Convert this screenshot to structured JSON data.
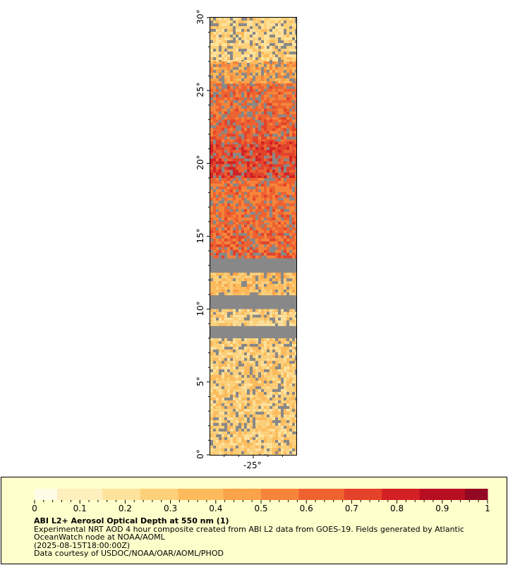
{
  "map": {
    "y_axis_labels": [
      "30°",
      "25°",
      "20°",
      "15°",
      "10°",
      "5°",
      "0°"
    ],
    "y_axis_values": [
      30,
      25,
      20,
      15,
      10,
      5,
      0
    ],
    "y_range": [
      0,
      30
    ],
    "x_axis_labels": [
      "-25°"
    ],
    "x_axis_values": [
      -25
    ],
    "x_range": [
      -28,
      -22
    ],
    "no_data_color": "#888888"
  },
  "legend": {
    "scale_labels": [
      "0",
      "0.1",
      "0.2",
      "0.3",
      "0.4",
      "0.5",
      "0.6",
      "0.7",
      "0.8",
      "0.9",
      "1"
    ],
    "scale_values": [
      0,
      0.1,
      0.2,
      0.3,
      0.4,
      0.5,
      0.6,
      0.7,
      0.8,
      0.9,
      1
    ],
    "title": "ABI L2+ Aerosol Optical Depth at 550 nm (1)",
    "description_line1": "Experimental NRT AOD 4 hour composite created from ABI L2 data from GOES-19. Fields generated by Atlantic",
    "description_line2": "OceanWatch node at NOAA/AOML",
    "timestamp": "(2025-08-15T18:00:00Z)",
    "credit": "Data courtesy of USDOC/NOAA/OAR/AOML/PHOD",
    "colormap": [
      "#fffbe6",
      "#ffeebe",
      "#fee29c",
      "#fdd07a",
      "#fdbb5c",
      "#fba24a",
      "#f6843a",
      "#ef6230",
      "#e4422a",
      "#d32024",
      "#b80e22",
      "#930823"
    ]
  },
  "aod_regions": [
    {
      "lat_top": 30,
      "lat_bottom": 27,
      "aod": 0.25
    },
    {
      "lat_top": 27,
      "lat_bottom": 25.5,
      "aod": 0.45
    },
    {
      "lat_top": 25.5,
      "lat_bottom": 23,
      "aod": 0.6
    },
    {
      "lat_top": 23,
      "lat_bottom": 21.5,
      "aod": 0.65
    },
    {
      "lat_top": 21.5,
      "lat_bottom": 19,
      "aod": 0.72
    },
    {
      "lat_top": 19,
      "lat_bottom": 16,
      "aod": 0.6
    },
    {
      "lat_top": 16,
      "lat_bottom": 13.5,
      "aod": 0.62
    },
    {
      "lat_top": 12.5,
      "lat_bottom": 11,
      "aod": 0.35
    },
    {
      "lat_top": 10,
      "lat_bottom": 9,
      "aod": 0.25
    },
    {
      "lat_top": 8,
      "lat_bottom": 0,
      "aod": 0.28
    }
  ]
}
